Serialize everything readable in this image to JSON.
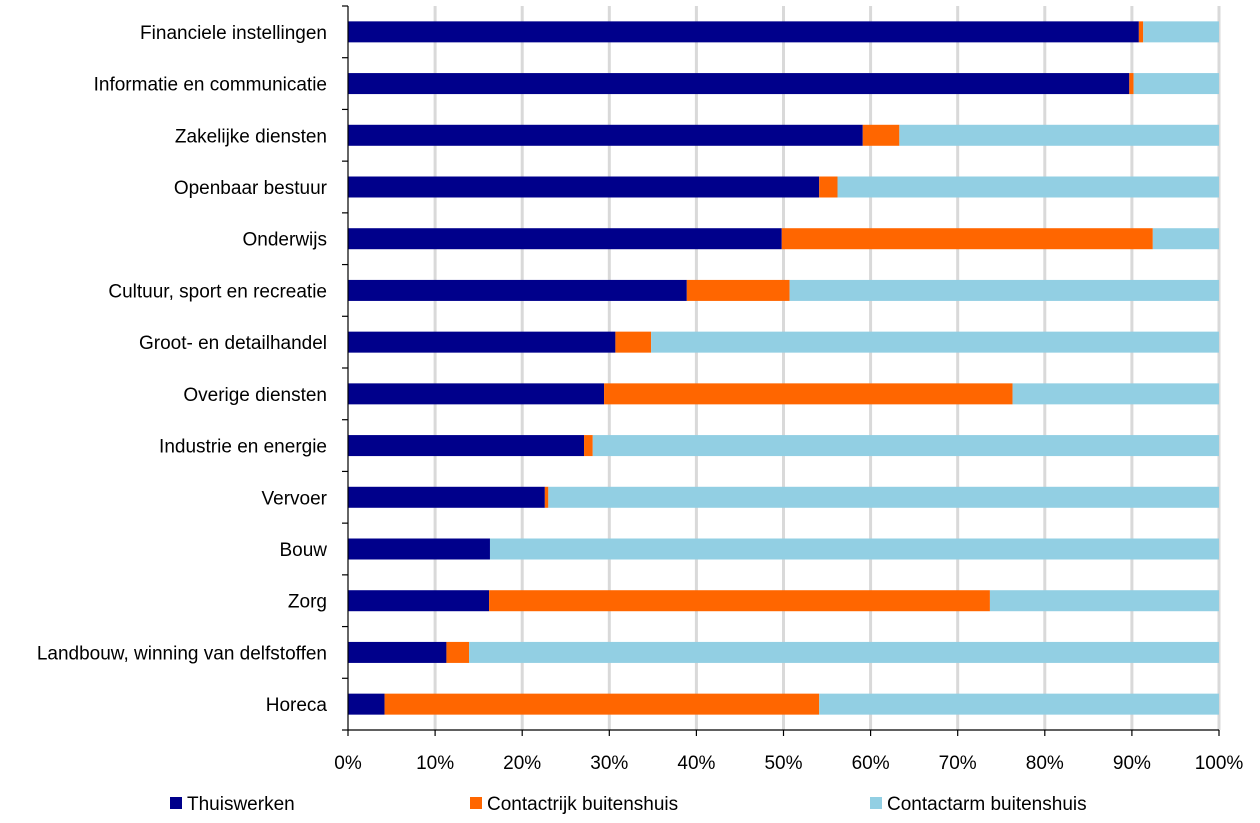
{
  "chart_data": {
    "type": "bar",
    "orientation": "horizontal",
    "stacked": "percent",
    "categories": [
      "Financiele instellingen",
      "Informatie en communicatie",
      "Zakelijke diensten",
      "Openbaar bestuur",
      "Onderwijs",
      "Cultuur, sport en recreatie",
      "Groot- en detailhandel",
      "Overige diensten",
      "Industrie en energie",
      "Vervoer",
      "Bouw",
      "Zorg",
      "Landbouw, winning van delfstoffen",
      "Horeca"
    ],
    "series": [
      {
        "name": "Thuiswerken",
        "color": "#00008B",
        "values": [
          90.8,
          89.7,
          59.1,
          54.1,
          49.8,
          38.9,
          30.7,
          29.4,
          27.1,
          22.6,
          16.3,
          16.2,
          11.3,
          4.2
        ]
      },
      {
        "name": "Contactrijk buitenshuis",
        "color": "#FF6600",
        "values": [
          0.5,
          0.5,
          4.2,
          2.1,
          42.6,
          11.8,
          4.1,
          46.9,
          1.0,
          0.4,
          0.0,
          57.5,
          2.6,
          49.9
        ]
      },
      {
        "name": "Contactarm buitenshuis",
        "color": "#92CFE3",
        "values": [
          8.7,
          9.8,
          36.7,
          43.8,
          7.6,
          49.3,
          65.2,
          23.7,
          71.9,
          77.0,
          83.7,
          26.3,
          86.1,
          45.9
        ]
      }
    ],
    "xticks": [
      "0%",
      "10%",
      "20%",
      "30%",
      "40%",
      "50%",
      "60%",
      "70%",
      "80%",
      "90%",
      "100%"
    ],
    "xlim": [
      0,
      100
    ],
    "grid": "vertical",
    "legend": "bottom",
    "title": "",
    "xlabel": "",
    "ylabel": ""
  }
}
